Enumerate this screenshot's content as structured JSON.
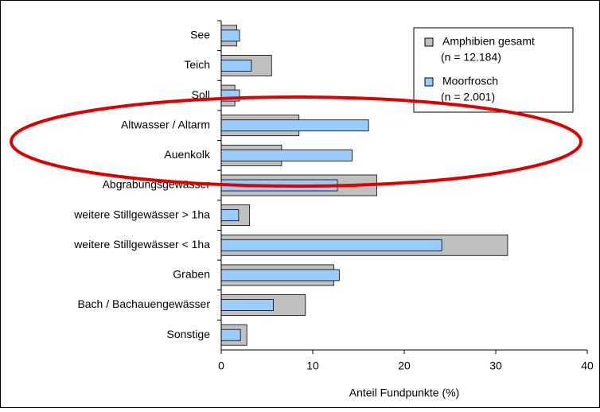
{
  "chart_data": {
    "type": "bar",
    "orientation": "horizontal",
    "x_label": "Anteil Fundpunkte (%)",
    "categories": [
      "See",
      "Teich",
      "Soll",
      "Altwasser / Altarm",
      "Auenkolk",
      "Abgrabungsgewässer",
      "weitere Stillgewässer > 1ha",
      "weitere Stillgewässer < 1ha",
      "Graben",
      "Bach / Bachauengewässer",
      "Sonstige"
    ],
    "series": [
      {
        "name": "Amphibien gesamt",
        "note": "(n = 12.184)",
        "color": "#c0c0c0",
        "values": [
          1.7,
          5.5,
          1.5,
          8.5,
          6.6,
          17.0,
          3.1,
          31.3,
          12.3,
          9.2,
          2.8
        ]
      },
      {
        "name": "Moorfrosch",
        "note": "(n = 2.001)",
        "color": "#99ccff",
        "values": [
          2.0,
          3.3,
          2.0,
          16.1,
          14.3,
          12.7,
          1.9,
          24.1,
          12.9,
          5.7,
          2.1
        ]
      }
    ],
    "xlim": [
      0,
      40
    ],
    "xticks": [
      0,
      10,
      20,
      30,
      40
    ],
    "legend": "upper right"
  }
}
